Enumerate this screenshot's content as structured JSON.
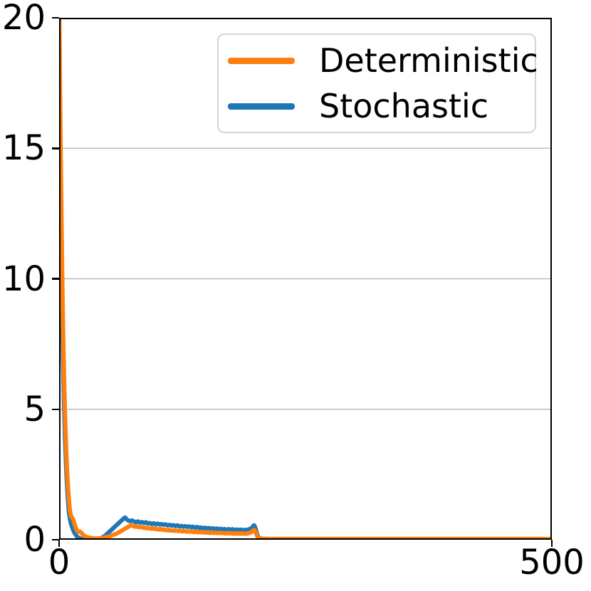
{
  "figure": {
    "background": "#ffffff"
  },
  "chart_data": {
    "type": "line",
    "title": "",
    "xlabel": "",
    "ylabel": "",
    "xlim": [
      0,
      500
    ],
    "ylim": [
      0,
      20
    ],
    "xticks": {
      "values": [
        0,
        500
      ],
      "labels": [
        "0",
        "500"
      ]
    },
    "yticks": {
      "values": [
        0,
        5,
        10,
        15,
        20
      ],
      "labels": [
        "0",
        "5",
        "10",
        "15",
        "20"
      ]
    },
    "grid": {
      "axis": "y",
      "values": [
        5,
        10,
        15
      ],
      "color": "#bcbcbc"
    },
    "axis_color": "#000000",
    "legend_position": "upper right",
    "series": [
      {
        "name": "Deterministic",
        "color": "#ff7f0e",
        "z": 2,
        "points": [
          [
            0,
            21
          ],
          [
            1,
            17
          ],
          [
            2,
            13.5
          ],
          [
            3,
            10.5
          ],
          [
            4,
            8.2
          ],
          [
            5,
            6.3
          ],
          [
            6,
            4.8
          ],
          [
            7,
            3.6
          ],
          [
            8,
            2.7
          ],
          [
            9,
            2
          ],
          [
            10,
            1.5
          ],
          [
            11,
            1.12
          ],
          [
            12,
            0.92
          ],
          [
            13,
            0.84
          ],
          [
            14,
            0.8
          ],
          [
            15,
            0.7
          ],
          [
            16,
            0.57
          ],
          [
            17,
            0.45
          ],
          [
            18,
            0.36
          ],
          [
            19,
            0.31
          ],
          [
            20,
            0.3
          ],
          [
            21,
            0.31
          ],
          [
            22,
            0.29
          ],
          [
            23,
            0.25
          ],
          [
            24,
            0.2
          ],
          [
            26,
            0.14
          ],
          [
            28,
            0.1
          ],
          [
            30,
            0.08
          ],
          [
            33,
            0.06
          ],
          [
            36,
            0.05
          ],
          [
            40,
            0.05
          ],
          [
            44,
            0.07
          ],
          [
            47,
            0.09
          ],
          [
            50,
            0.12
          ],
          [
            53,
            0.16
          ],
          [
            56,
            0.2
          ],
          [
            59,
            0.25
          ],
          [
            62,
            0.31
          ],
          [
            65,
            0.38
          ],
          [
            68,
            0.45
          ],
          [
            71,
            0.51
          ],
          [
            73,
            0.55
          ],
          [
            75,
            0.53
          ],
          [
            77,
            0.5
          ],
          [
            79,
            0.51
          ],
          [
            81,
            0.48
          ],
          [
            83,
            0.49
          ],
          [
            85,
            0.46
          ],
          [
            87,
            0.47
          ],
          [
            89,
            0.44
          ],
          [
            91,
            0.45
          ],
          [
            93,
            0.42
          ],
          [
            95,
            0.44
          ],
          [
            97,
            0.41
          ],
          [
            99,
            0.42
          ],
          [
            101,
            0.39
          ],
          [
            103,
            0.41
          ],
          [
            105,
            0.38
          ],
          [
            107,
            0.39
          ],
          [
            109,
            0.36
          ],
          [
            111,
            0.38
          ],
          [
            113,
            0.35
          ],
          [
            115,
            0.36
          ],
          [
            117,
            0.34
          ],
          [
            119,
            0.35
          ],
          [
            121,
            0.33
          ],
          [
            123,
            0.34
          ],
          [
            125,
            0.32
          ],
          [
            127,
            0.33
          ],
          [
            129,
            0.31
          ],
          [
            131,
            0.32
          ],
          [
            133,
            0.31
          ],
          [
            135,
            0.32
          ],
          [
            137,
            0.29
          ],
          [
            139,
            0.31
          ],
          [
            141,
            0.28
          ],
          [
            143,
            0.3
          ],
          [
            145,
            0.28
          ],
          [
            147,
            0.29
          ],
          [
            149,
            0.27
          ],
          [
            151,
            0.29
          ],
          [
            153,
            0.26
          ],
          [
            155,
            0.28
          ],
          [
            157,
            0.26
          ],
          [
            159,
            0.27
          ],
          [
            161,
            0.25
          ],
          [
            163,
            0.27
          ],
          [
            165,
            0.25
          ],
          [
            167,
            0.26
          ],
          [
            169,
            0.24
          ],
          [
            171,
            0.26
          ],
          [
            173,
            0.24
          ],
          [
            175,
            0.25
          ],
          [
            177,
            0.23
          ],
          [
            179,
            0.25
          ],
          [
            181,
            0.23
          ],
          [
            183,
            0.24
          ],
          [
            185,
            0.23
          ],
          [
            187,
            0.24
          ],
          [
            189,
            0.23
          ],
          [
            191,
            0.24
          ],
          [
            193,
            0.26
          ],
          [
            195,
            0.29
          ],
          [
            197,
            0.35
          ],
          [
            198,
            0.38
          ],
          [
            199,
            0.33
          ],
          [
            200,
            0.24
          ],
          [
            201,
            0.14
          ],
          [
            202,
            0.08
          ],
          [
            204,
            0.05
          ],
          [
            207,
            0.04
          ],
          [
            212,
            0.03
          ],
          [
            260,
            0.03
          ],
          [
            320,
            0.03
          ],
          [
            380,
            0.03
          ],
          [
            440,
            0.03
          ],
          [
            500,
            0.03
          ]
        ]
      },
      {
        "name": "Stochastic",
        "color": "#1f77b4",
        "z": 1,
        "points": [
          [
            0,
            21
          ],
          [
            1,
            16
          ],
          [
            2,
            12
          ],
          [
            3,
            9
          ],
          [
            4,
            6.9
          ],
          [
            5,
            5.2
          ],
          [
            6,
            3.9
          ],
          [
            7,
            2.9
          ],
          [
            8,
            2.1
          ],
          [
            9,
            1.5
          ],
          [
            10,
            1.05
          ],
          [
            11,
            0.8
          ],
          [
            12,
            0.62
          ],
          [
            13,
            0.5
          ],
          [
            14,
            0.4
          ],
          [
            15,
            0.31
          ],
          [
            16,
            0.24
          ],
          [
            17,
            0.18
          ],
          [
            18,
            0.13
          ],
          [
            20,
            0.07
          ],
          [
            22,
            0.04
          ],
          [
            24,
            0.02
          ],
          [
            27,
            0.01
          ],
          [
            30,
            0
          ],
          [
            33,
            0
          ],
          [
            36,
            0.01
          ],
          [
            39,
            0.02
          ],
          [
            42,
            0.05
          ],
          [
            44,
            0.09
          ],
          [
            46,
            0.14
          ],
          [
            48,
            0.2
          ],
          [
            50,
            0.27
          ],
          [
            52,
            0.34
          ],
          [
            54,
            0.41
          ],
          [
            56,
            0.48
          ],
          [
            58,
            0.55
          ],
          [
            60,
            0.62
          ],
          [
            62,
            0.69
          ],
          [
            64,
            0.76
          ],
          [
            66,
            0.83
          ],
          [
            67,
            0.85
          ],
          [
            68,
            0.8
          ],
          [
            70,
            0.74
          ],
          [
            72,
            0.71
          ],
          [
            74,
            0.74
          ],
          [
            76,
            0.7
          ],
          [
            78,
            0.67
          ],
          [
            80,
            0.7
          ],
          [
            82,
            0.66
          ],
          [
            84,
            0.68
          ],
          [
            86,
            0.64
          ],
          [
            88,
            0.67
          ],
          [
            90,
            0.62
          ],
          [
            92,
            0.64
          ],
          [
            94,
            0.6
          ],
          [
            96,
            0.63
          ],
          [
            98,
            0.59
          ],
          [
            100,
            0.62
          ],
          [
            102,
            0.58
          ],
          [
            104,
            0.6
          ],
          [
            106,
            0.57
          ],
          [
            108,
            0.59
          ],
          [
            110,
            0.55
          ],
          [
            112,
            0.57
          ],
          [
            114,
            0.54
          ],
          [
            116,
            0.56
          ],
          [
            118,
            0.52
          ],
          [
            120,
            0.55
          ],
          [
            122,
            0.51
          ],
          [
            124,
            0.53
          ],
          [
            126,
            0.5
          ],
          [
            128,
            0.52
          ],
          [
            130,
            0.49
          ],
          [
            132,
            0.51
          ],
          [
            134,
            0.48
          ],
          [
            136,
            0.5
          ],
          [
            138,
            0.46
          ],
          [
            140,
            0.49
          ],
          [
            142,
            0.45
          ],
          [
            144,
            0.47
          ],
          [
            146,
            0.44
          ],
          [
            148,
            0.46
          ],
          [
            150,
            0.43
          ],
          [
            152,
            0.45
          ],
          [
            154,
            0.42
          ],
          [
            156,
            0.44
          ],
          [
            158,
            0.41
          ],
          [
            160,
            0.43
          ],
          [
            162,
            0.4
          ],
          [
            164,
            0.42
          ],
          [
            166,
            0.39
          ],
          [
            168,
            0.41
          ],
          [
            170,
            0.38
          ],
          [
            172,
            0.41
          ],
          [
            174,
            0.38
          ],
          [
            176,
            0.4
          ],
          [
            178,
            0.37
          ],
          [
            180,
            0.39
          ],
          [
            182,
            0.37
          ],
          [
            184,
            0.39
          ],
          [
            186,
            0.36
          ],
          [
            188,
            0.38
          ],
          [
            190,
            0.37
          ],
          [
            192,
            0.39
          ],
          [
            194,
            0.42
          ],
          [
            196,
            0.46
          ],
          [
            197,
            0.53
          ],
          [
            198,
            0.55
          ],
          [
            199,
            0.47
          ],
          [
            200,
            0.34
          ],
          [
            201,
            0.2
          ],
          [
            202,
            0.11
          ],
          [
            204,
            0.05
          ],
          [
            207,
            0.03
          ],
          [
            212,
            0.02
          ],
          [
            260,
            0.02
          ],
          [
            320,
            0.02
          ],
          [
            380,
            0.02
          ],
          [
            440,
            0.02
          ],
          [
            500,
            0.02
          ]
        ]
      }
    ]
  }
}
